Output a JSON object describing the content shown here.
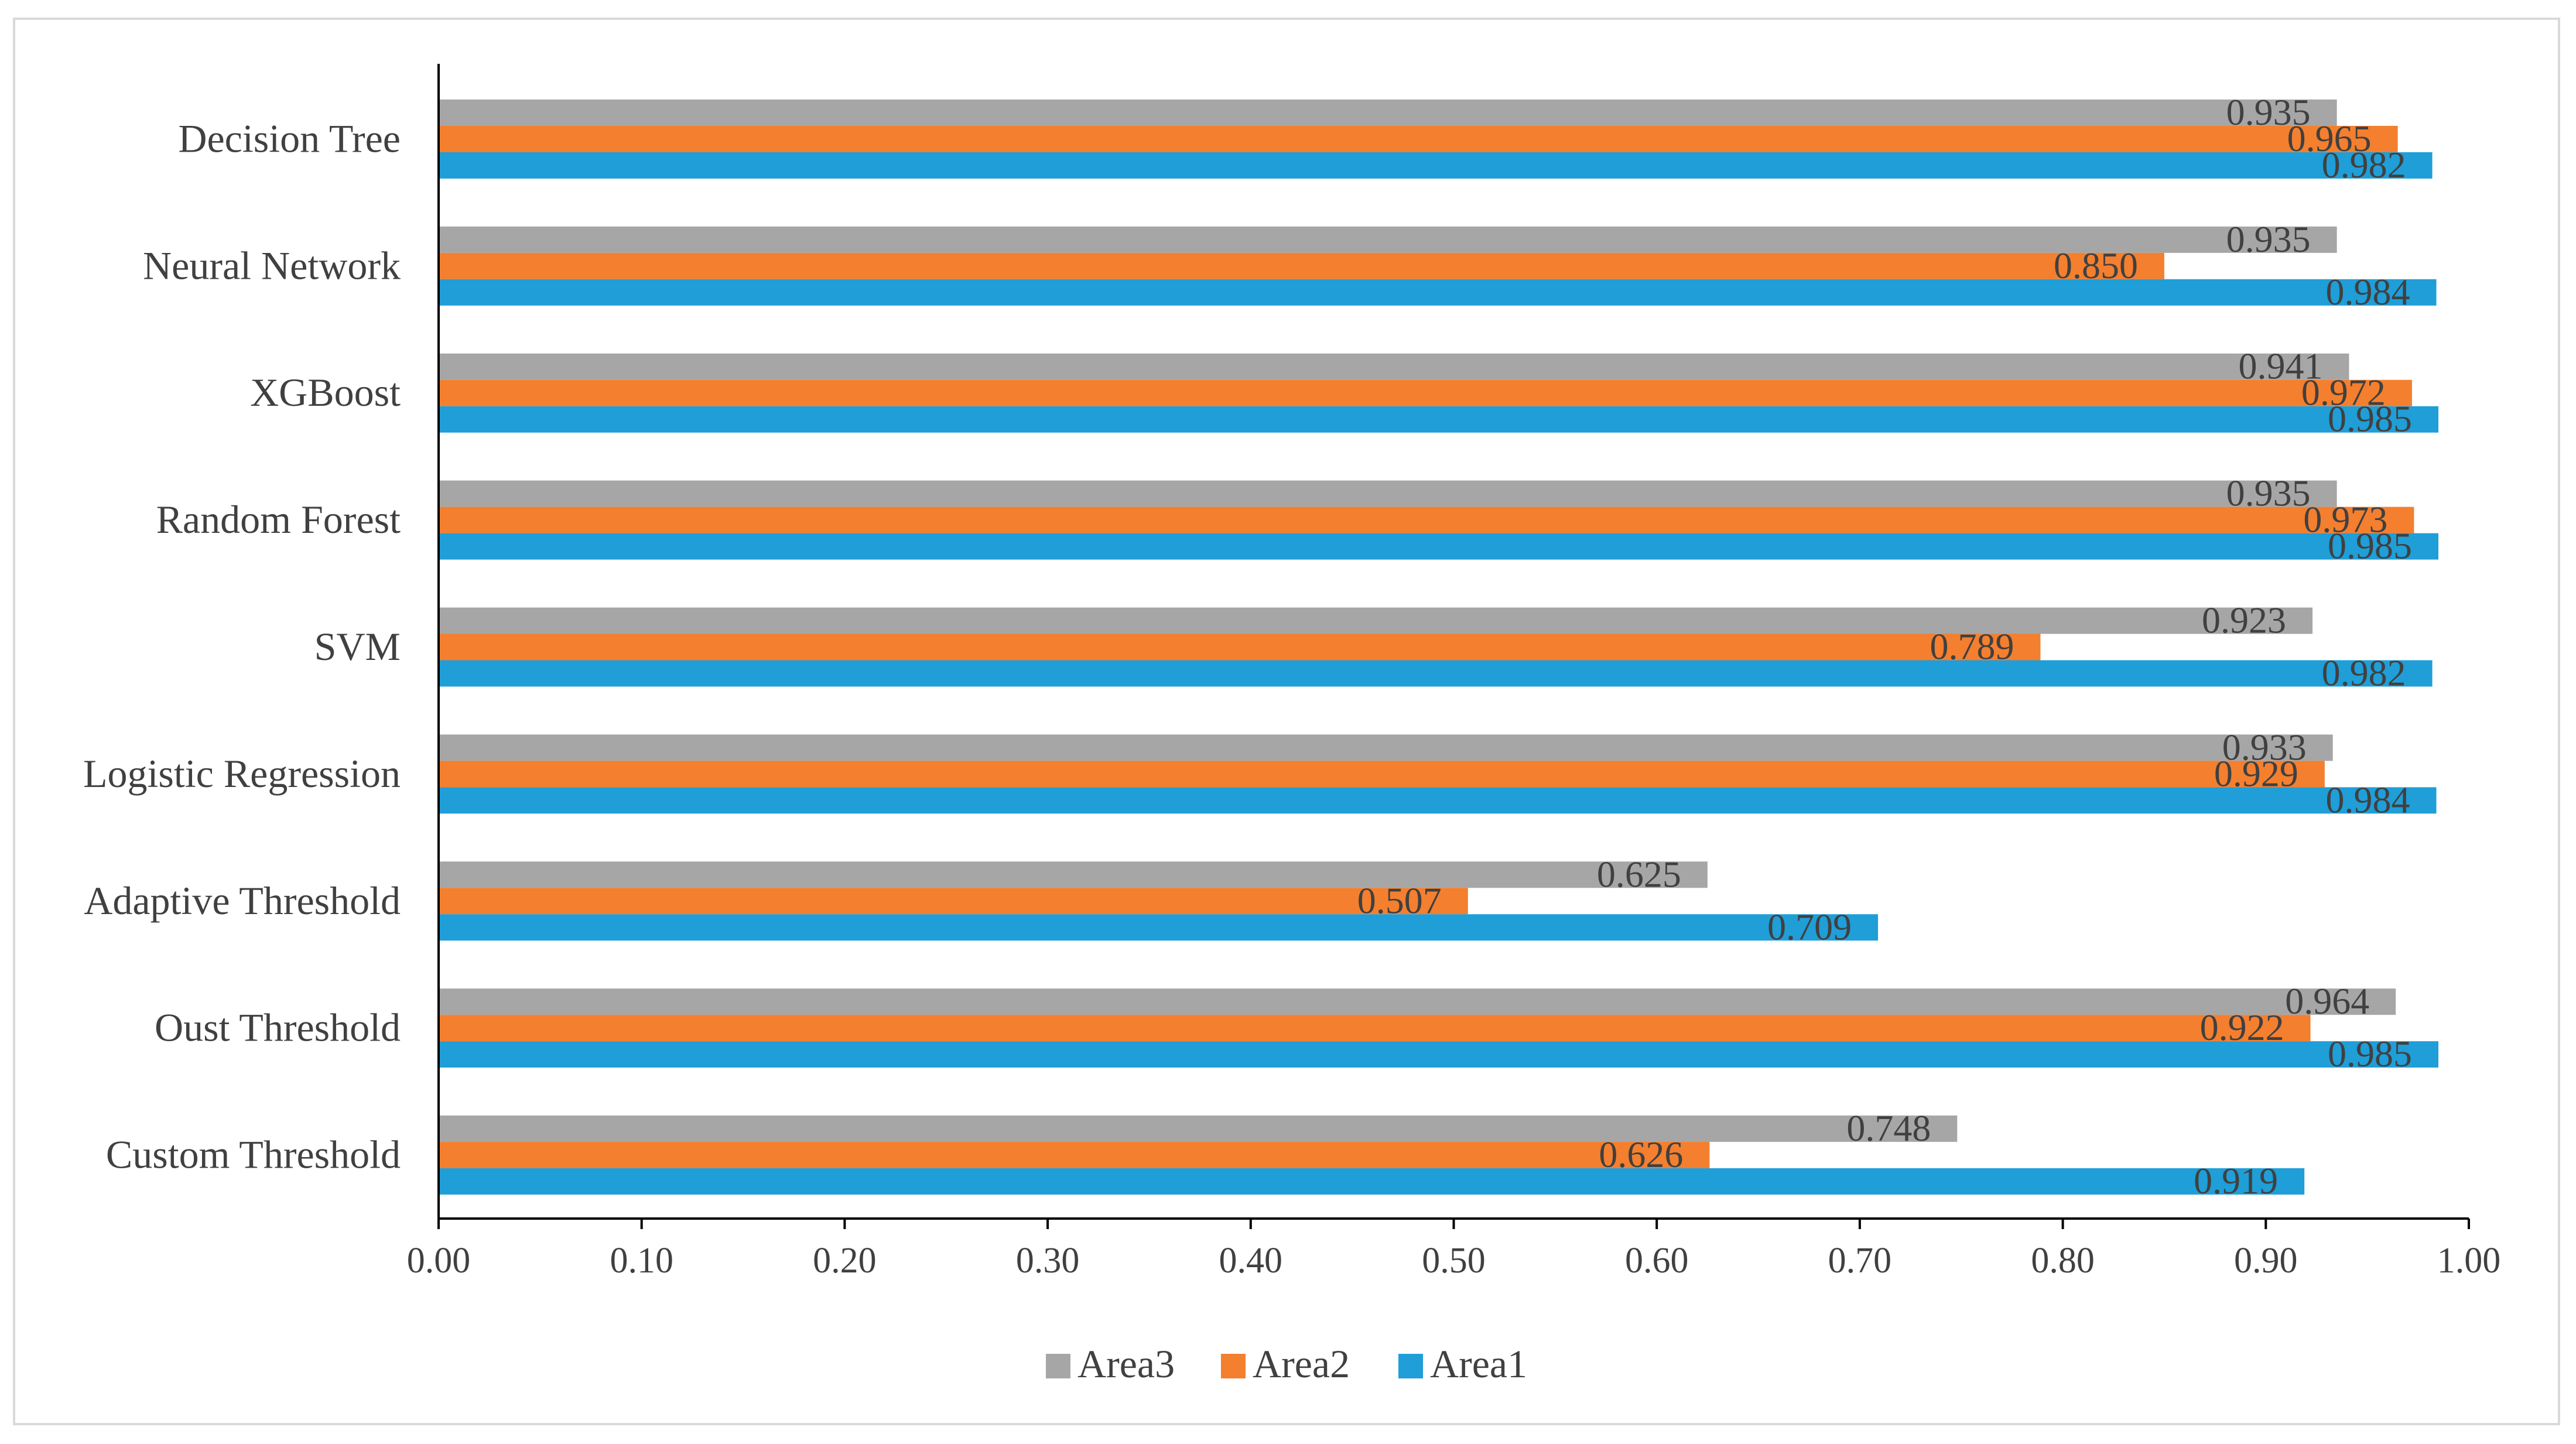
{
  "chart_data": {
    "type": "bar",
    "orientation": "horizontal",
    "categories": [
      "Custom Threshold",
      "Oust Threshold",
      "Adaptive Threshold",
      "Logistic Regression",
      "SVM",
      "Random Forest",
      "XGBoost",
      "Neural Network",
      "Decision Tree"
    ],
    "series": [
      {
        "name": "Area1",
        "color": "#1f9ed8",
        "values": [
          0.919,
          0.985,
          0.709,
          0.984,
          0.982,
          0.985,
          0.985,
          0.984,
          0.982
        ],
        "labels": [
          "0.919",
          "0.985",
          "0.709",
          "0.984",
          "0.982",
          "0.985",
          "0.985",
          "0.984",
          "0.982"
        ]
      },
      {
        "name": "Area2",
        "color": "#f47f2e",
        "values": [
          0.626,
          0.922,
          0.507,
          0.929,
          0.789,
          0.973,
          0.972,
          0.85,
          0.965
        ],
        "labels": [
          "0.626",
          "0.922",
          "0.507",
          "0.929",
          "0.789",
          "0.973",
          "0.972",
          "0.850",
          "0.965"
        ]
      },
      {
        "name": "Area3",
        "color": "#a6a6a6",
        "values": [
          0.748,
          0.964,
          0.625,
          0.933,
          0.923,
          0.935,
          0.941,
          0.935,
          0.935
        ],
        "labels": [
          "0.748",
          "0.964",
          "0.625",
          "0.933",
          "0.923",
          "0.935",
          "0.941",
          "0.935",
          "0.935"
        ]
      }
    ],
    "xlim": [
      0,
      1
    ],
    "xticks": [
      "0.00",
      "0.10",
      "0.20",
      "0.30",
      "0.40",
      "0.50",
      "0.60",
      "0.70",
      "0.80",
      "0.90",
      "1.00"
    ],
    "legend_order": [
      "Area3",
      "Area2",
      "Area1"
    ],
    "legend_position": "bottom",
    "grid": false,
    "title": "",
    "xlabel": "",
    "ylabel": ""
  }
}
